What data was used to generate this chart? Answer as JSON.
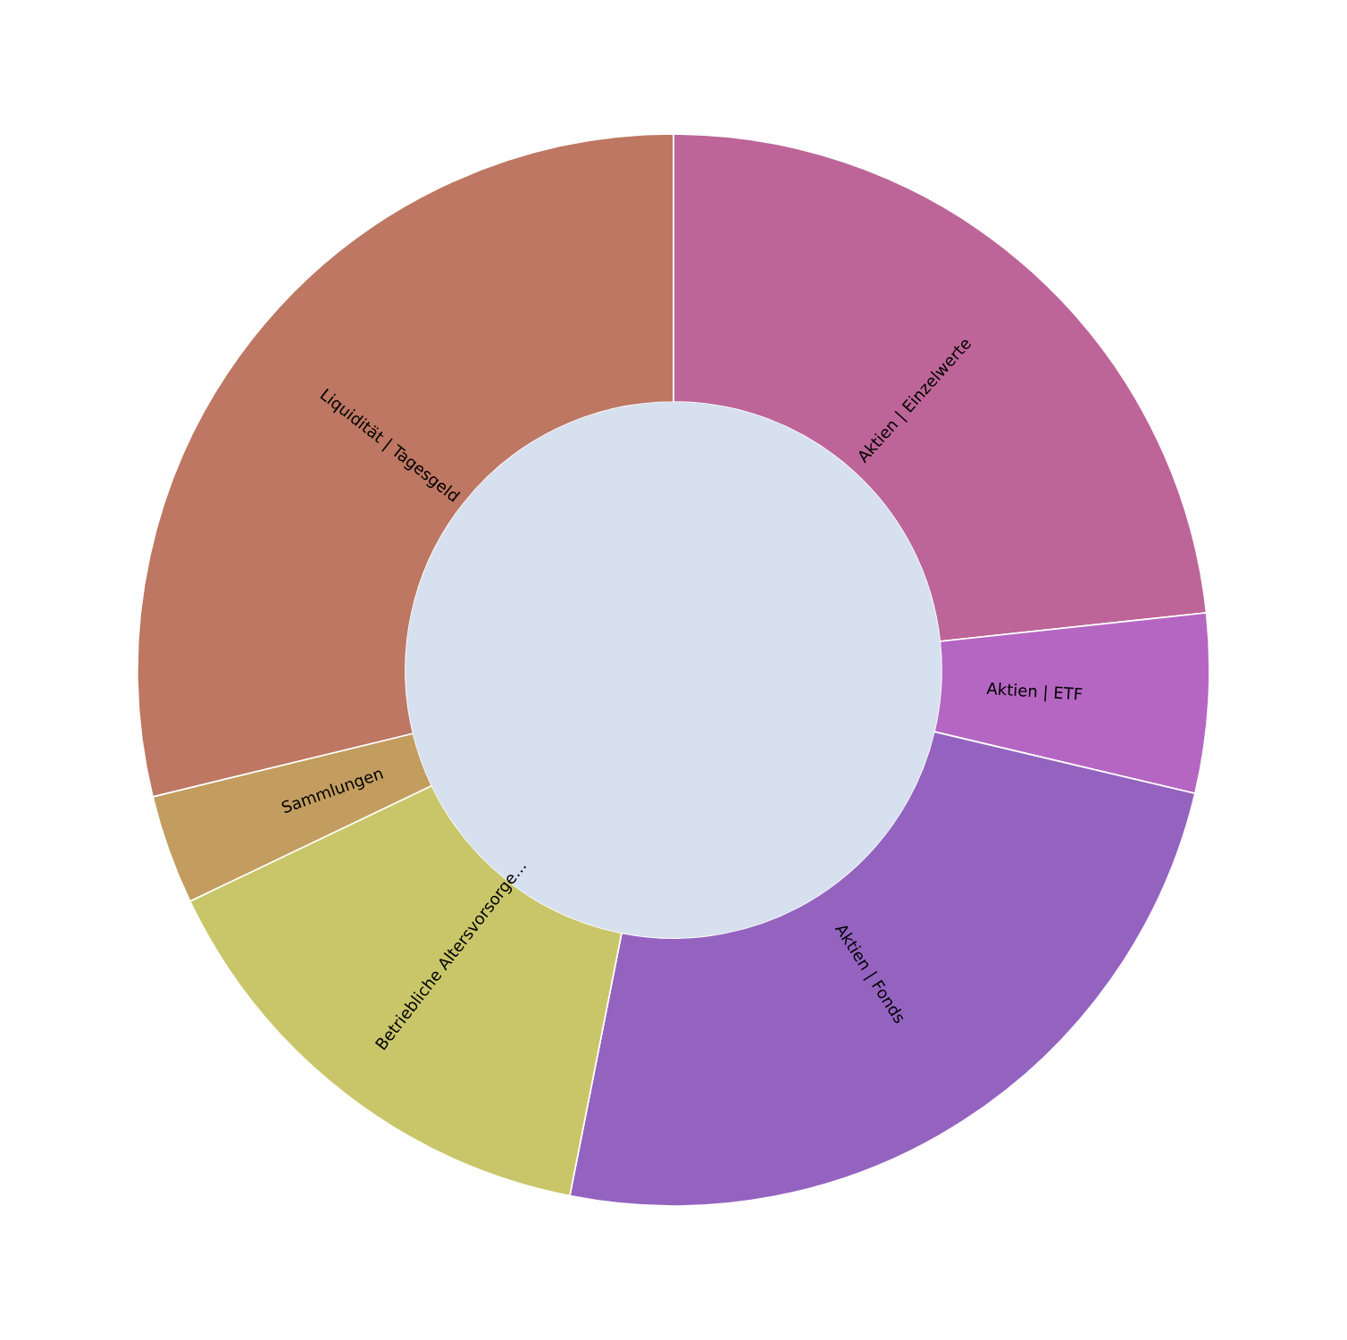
{
  "chart_data": {
    "type": "donut",
    "categories": [
      "Aktien | Einzelwerte",
      "Aktien | ETF",
      "Aktien | Fonds",
      "Betriebliche Altersvorsorge...",
      "Sammlungen",
      "Liquidität | Tagesgeld"
    ],
    "values": [
      23.3,
      5.4,
      24.4,
      14.8,
      3.3,
      28.8
    ],
    "colors": [
      "#bd6598",
      "#b566c2",
      "#9463c0",
      "#c9c66a",
      "#c29d5f",
      "#bd7762"
    ]
  }
}
